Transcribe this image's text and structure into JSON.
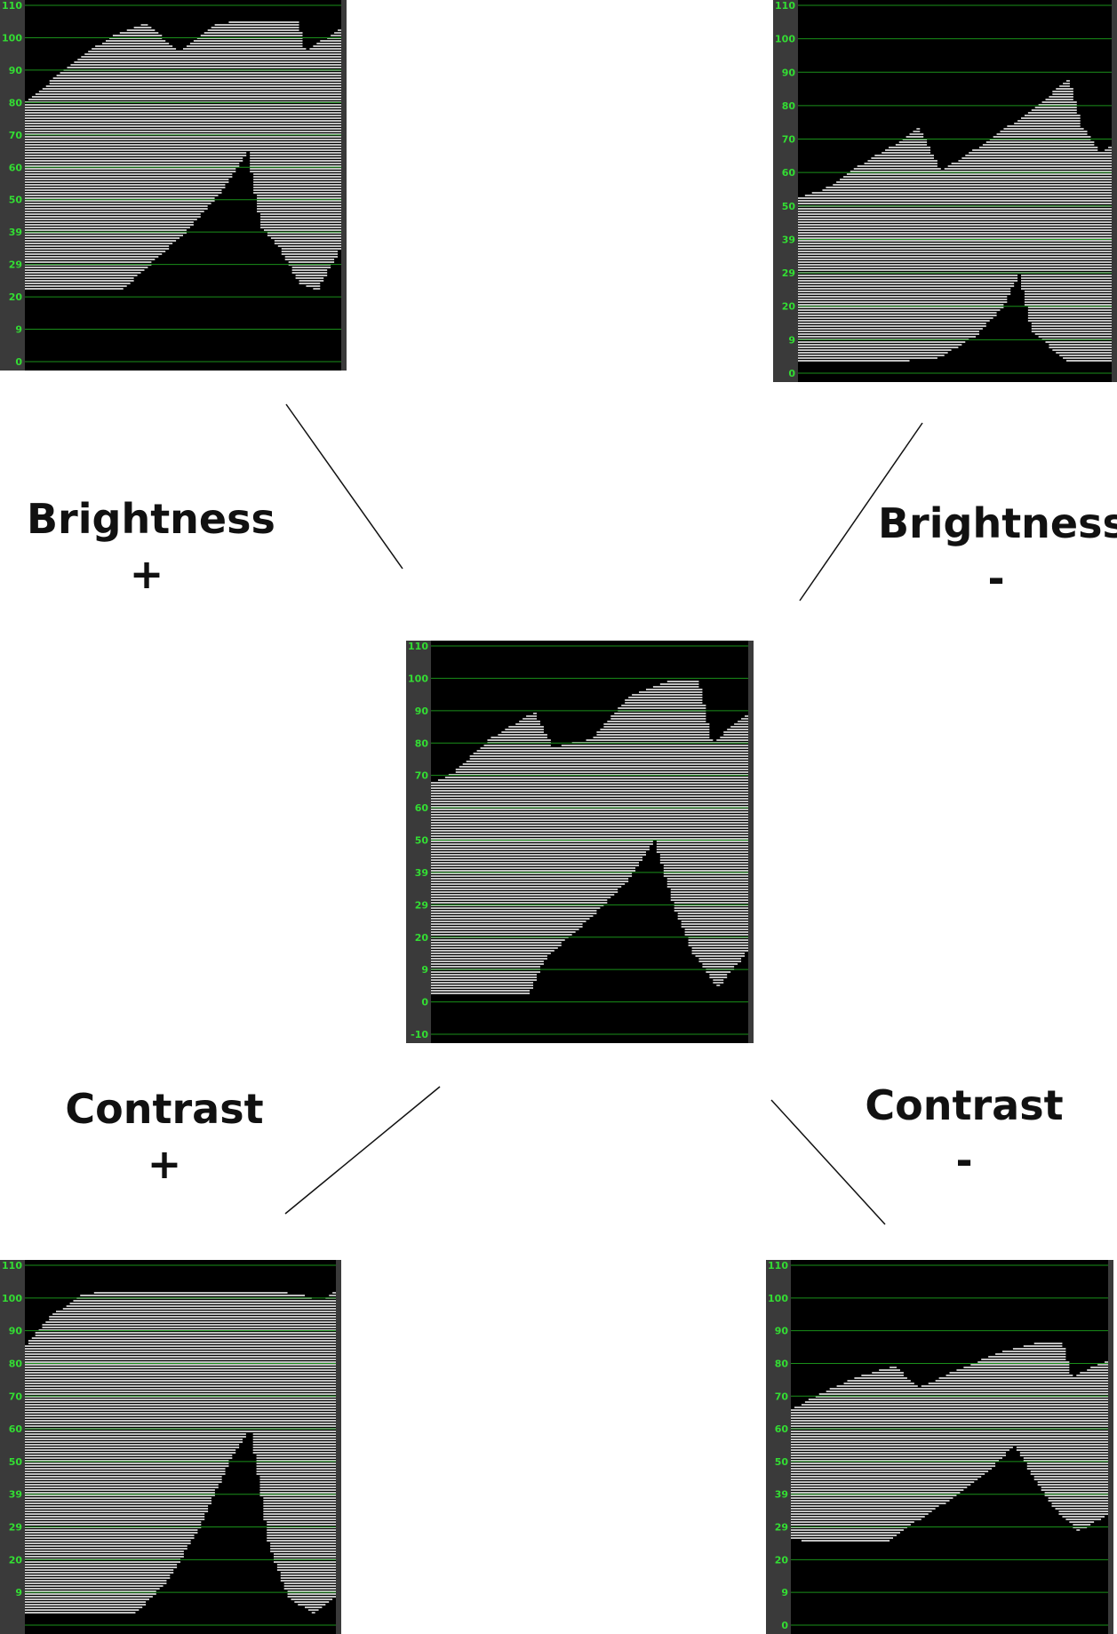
{
  "colors": {
    "grid": "#1a8f1a",
    "tick_text": "#33dd33",
    "background": "#000000",
    "trace": "#ffffff",
    "frame": "#3a3a3a"
  },
  "labels": {
    "brightness_plus": {
      "name": "Brightness",
      "sign": "+"
    },
    "brightness_minus": {
      "name": "Brightness",
      "sign": "-"
    },
    "contrast_plus": {
      "name": "Contrast",
      "sign": "+"
    },
    "contrast_minus": {
      "name": "Contrast",
      "sign": "-"
    }
  },
  "scopes": {
    "brightness_plus": {
      "ticks": [
        "110",
        "100",
        "90",
        "80",
        "70",
        "60",
        "50",
        "39",
        "29",
        "20",
        "9",
        "0"
      ],
      "upper_edge": [
        [
          0,
          0.73
        ],
        [
          0.08,
          0.79
        ],
        [
          0.18,
          0.86
        ],
        [
          0.28,
          0.92
        ],
        [
          0.38,
          0.95
        ],
        [
          0.48,
          0.87
        ],
        [
          0.6,
          0.95
        ],
        [
          0.74,
          0.96
        ],
        [
          0.86,
          0.96
        ],
        [
          0.88,
          0.87
        ],
        [
          1,
          0.94
        ]
      ],
      "lower_edge": [
        [
          0,
          0.2
        ],
        [
          0.05,
          0.2
        ],
        [
          0.3,
          0.2
        ],
        [
          0.35,
          0.24
        ],
        [
          0.5,
          0.36
        ],
        [
          0.62,
          0.48
        ],
        [
          0.7,
          0.59
        ],
        [
          0.74,
          0.38
        ],
        [
          0.8,
          0.32
        ],
        [
          0.86,
          0.22
        ],
        [
          0.92,
          0.2
        ],
        [
          1,
          0.33
        ]
      ]
    },
    "brightness_minus": {
      "ticks": [
        "110",
        "100",
        "90",
        "80",
        "70",
        "60",
        "50",
        "39",
        "29",
        "20",
        "9",
        "0"
      ],
      "upper_edge": [
        [
          0,
          0.48
        ],
        [
          0.08,
          0.5
        ],
        [
          0.2,
          0.57
        ],
        [
          0.32,
          0.63
        ],
        [
          0.38,
          0.67
        ],
        [
          0.45,
          0.55
        ],
        [
          0.6,
          0.63
        ],
        [
          0.76,
          0.73
        ],
        [
          0.86,
          0.8
        ],
        [
          0.9,
          0.67
        ],
        [
          0.96,
          0.6
        ],
        [
          1,
          0.62
        ]
      ],
      "lower_edge": [
        [
          0,
          0.03
        ],
        [
          0.3,
          0.03
        ],
        [
          0.44,
          0.04
        ],
        [
          0.56,
          0.1
        ],
        [
          0.65,
          0.18
        ],
        [
          0.7,
          0.27
        ],
        [
          0.74,
          0.11
        ],
        [
          0.8,
          0.07
        ],
        [
          0.86,
          0.03
        ],
        [
          1,
          0.03
        ]
      ]
    },
    "center": {
      "ticks": [
        "110",
        "100",
        "90",
        "80",
        "70",
        "60",
        "50",
        "39",
        "29",
        "20",
        "9",
        "0",
        "-10"
      ],
      "upper_edge": [
        [
          0,
          0.65
        ],
        [
          0.06,
          0.67
        ],
        [
          0.18,
          0.76
        ],
        [
          0.32,
          0.83
        ],
        [
          0.38,
          0.74
        ],
        [
          0.5,
          0.76
        ],
        [
          0.62,
          0.87
        ],
        [
          0.74,
          0.91
        ],
        [
          0.84,
          0.91
        ],
        [
          0.88,
          0.75
        ],
        [
          1,
          0.83
        ]
      ],
      "lower_edge": [
        [
          0,
          0.1
        ],
        [
          0.04,
          0.1
        ],
        [
          0.3,
          0.1
        ],
        [
          0.36,
          0.2
        ],
        [
          0.5,
          0.3
        ],
        [
          0.62,
          0.4
        ],
        [
          0.7,
          0.5
        ],
        [
          0.76,
          0.33
        ],
        [
          0.82,
          0.21
        ],
        [
          0.9,
          0.12
        ],
        [
          1,
          0.22
        ]
      ]
    },
    "contrast_plus": {
      "ticks": [
        "110",
        "100",
        "90",
        "80",
        "70",
        "60",
        "50",
        "39",
        "29",
        "20",
        "9",
        ""
      ],
      "upper_edge": [
        [
          0,
          0.78
        ],
        [
          0.08,
          0.86
        ],
        [
          0.18,
          0.92
        ],
        [
          0.3,
          0.93
        ],
        [
          0.4,
          0.93
        ],
        [
          0.52,
          0.93
        ],
        [
          0.75,
          0.93
        ],
        [
          0.88,
          0.92
        ],
        [
          0.94,
          0.9
        ],
        [
          1,
          0.93
        ]
      ],
      "lower_edge": [
        [
          0,
          0.03
        ],
        [
          0.35,
          0.03
        ],
        [
          0.45,
          0.12
        ],
        [
          0.55,
          0.26
        ],
        [
          0.65,
          0.45
        ],
        [
          0.72,
          0.55
        ],
        [
          0.78,
          0.22
        ],
        [
          0.84,
          0.08
        ],
        [
          0.92,
          0.03
        ],
        [
          1,
          0.08
        ]
      ]
    },
    "contrast_minus": {
      "ticks": [
        "110",
        "100",
        "90",
        "80",
        "70",
        "60",
        "50",
        "39",
        "29",
        "20",
        "9",
        "0"
      ],
      "upper_edge": [
        [
          0,
          0.6
        ],
        [
          0.08,
          0.64
        ],
        [
          0.2,
          0.69
        ],
        [
          0.32,
          0.72
        ],
        [
          0.4,
          0.66
        ],
        [
          0.52,
          0.71
        ],
        [
          0.66,
          0.76
        ],
        [
          0.8,
          0.79
        ],
        [
          0.85,
          0.79
        ],
        [
          0.88,
          0.69
        ],
        [
          1,
          0.74
        ]
      ],
      "lower_edge": [
        [
          0,
          0.24
        ],
        [
          0.05,
          0.23
        ],
        [
          0.3,
          0.23
        ],
        [
          0.36,
          0.27
        ],
        [
          0.5,
          0.35
        ],
        [
          0.62,
          0.43
        ],
        [
          0.7,
          0.5
        ],
        [
          0.76,
          0.41
        ],
        [
          0.82,
          0.33
        ],
        [
          0.9,
          0.26
        ],
        [
          1,
          0.31
        ]
      ]
    }
  }
}
